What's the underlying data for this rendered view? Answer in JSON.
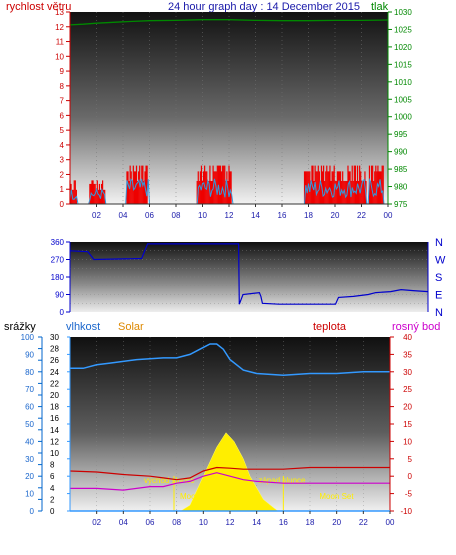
{
  "header": {
    "left_label": "rychlost větru",
    "title": "24 hour graph day : 14 December 2015",
    "right_label": "tlak"
  },
  "lower_header": {
    "label_srazky": "srážky",
    "label_vlhkost": "vlhkost",
    "label_solar": "Solar",
    "label_teplota": "teplota",
    "label_rosny": "rosný bod"
  },
  "colors": {
    "wind": "#dd0000",
    "wind_gust": "#3399dd",
    "pressure": "#008800",
    "direction": "#0000cc",
    "humidity": "#3399ff",
    "temperature": "#cc0000",
    "dewpoint": "#cc00cc",
    "solar": "#ffee00",
    "axis_red": "#cc0000",
    "axis_blue": "#0000cc",
    "axis_green": "#008800"
  },
  "chart_data": [
    {
      "type": "bar",
      "x_ticks": [
        "02",
        "04",
        "06",
        "08",
        "10",
        "12",
        "14",
        "16",
        "18",
        "20",
        "22",
        "00"
      ],
      "y_left_ticks": [
        "0",
        "1",
        "2",
        "3",
        "4",
        "5",
        "6",
        "7",
        "8",
        "9",
        "10",
        "11",
        "12",
        "13"
      ],
      "y_right_ticks": [
        "975",
        "980",
        "985",
        "990",
        "995",
        "1000",
        "1005",
        "1010",
        "1015",
        "1020",
        "1025",
        "1030"
      ],
      "ylim_left": [
        0,
        13
      ],
      "ylim_right": [
        975,
        1030
      ],
      "wind_segments": [
        {
          "from": 0.0,
          "to": 0.5,
          "max": 1.6
        },
        {
          "from": 1.5,
          "to": 2.7,
          "max": 1.6
        },
        {
          "from": 4.3,
          "to": 5.9,
          "max": 2.6
        },
        {
          "from": 9.6,
          "to": 12.2,
          "max": 2.6
        },
        {
          "from": 17.7,
          "to": 22.4,
          "max": 2.6
        },
        {
          "from": 22.6,
          "to": 23.7,
          "max": 2.6
        }
      ],
      "pressure": [
        [
          0,
          1026.3
        ],
        [
          1,
          1026.5
        ],
        [
          2,
          1026.8
        ],
        [
          4,
          1027.2
        ],
        [
          6,
          1027.5
        ],
        [
          8,
          1027.6
        ],
        [
          10,
          1027.8
        ],
        [
          12,
          1027.8
        ],
        [
          14,
          1027.6
        ],
        [
          16,
          1027.5
        ],
        [
          18,
          1027.5
        ],
        [
          20,
          1027.6
        ],
        [
          22,
          1027.6
        ],
        [
          24,
          1027.7
        ]
      ]
    },
    {
      "type": "line",
      "y_left_ticks": [
        "0",
        "90",
        "180",
        "270",
        "360"
      ],
      "y_right_ticks": [
        "N",
        "W",
        "S",
        "E",
        "N"
      ],
      "ylim": [
        0,
        360
      ],
      "direction": [
        [
          0,
          315
        ],
        [
          1.2,
          310
        ],
        [
          1.6,
          270
        ],
        [
          4.8,
          275
        ],
        [
          5.2,
          350
        ],
        [
          11.3,
          350
        ],
        [
          11.35,
          40
        ],
        [
          11.6,
          90
        ],
        [
          12.7,
          100
        ],
        [
          12.8,
          80
        ],
        [
          12.9,
          45
        ],
        [
          14,
          40
        ],
        [
          16,
          40
        ],
        [
          17.8,
          40
        ],
        [
          18.0,
          75
        ],
        [
          19,
          80
        ],
        [
          20,
          90
        ],
        [
          20.5,
          100
        ],
        [
          21.5,
          105
        ],
        [
          22.2,
          115
        ],
        [
          23,
          110
        ],
        [
          24,
          105
        ]
      ]
    },
    {
      "type": "line",
      "x_ticks": [
        "02",
        "04",
        "06",
        "08",
        "10",
        "12",
        "14",
        "16",
        "18",
        "20",
        "22",
        "00"
      ],
      "y_rain_ticks": [
        "0",
        "2",
        "4",
        "6",
        "8",
        "10",
        "12",
        "14",
        "16",
        "18",
        "20",
        "22",
        "24",
        "26",
        "28",
        "30"
      ],
      "y_hum_ticks": [
        "0",
        "10",
        "20",
        "30",
        "40",
        "50",
        "60",
        "70",
        "80",
        "90",
        "100"
      ],
      "y_temp_ticks": [
        "-10",
        "-5",
        "0",
        "5",
        "10",
        "15",
        "20",
        "25",
        "30",
        "35",
        "40"
      ],
      "ylim_humidity": [
        0,
        100
      ],
      "ylim_temperature": [
        -10,
        40
      ],
      "humidity": [
        [
          0,
          82
        ],
        [
          1,
          82
        ],
        [
          2,
          84
        ],
        [
          3,
          85
        ],
        [
          5,
          87
        ],
        [
          7,
          88
        ],
        [
          8,
          88
        ],
        [
          9,
          90
        ],
        [
          10,
          94
        ],
        [
          10.5,
          96
        ],
        [
          11,
          96
        ],
        [
          11.5,
          93
        ],
        [
          12,
          87
        ],
        [
          13,
          81
        ],
        [
          14,
          79
        ],
        [
          16,
          78
        ],
        [
          18,
          79
        ],
        [
          20,
          79
        ],
        [
          22,
          80
        ],
        [
          24,
          80
        ]
      ],
      "temperature": [
        [
          0,
          1.5
        ],
        [
          2,
          1.2
        ],
        [
          4,
          0.5
        ],
        [
          6,
          0
        ],
        [
          7,
          -0.5
        ],
        [
          8,
          -1
        ],
        [
          9,
          -0.5
        ],
        [
          10,
          1.5
        ],
        [
          11,
          2.5
        ],
        [
          12,
          2.3
        ],
        [
          13,
          2.0
        ],
        [
          14,
          2.0
        ],
        [
          16,
          2.0
        ],
        [
          18,
          2.5
        ],
        [
          20,
          2.5
        ],
        [
          22,
          2.5
        ],
        [
          24,
          2.5
        ]
      ],
      "dewpoint": [
        [
          0,
          -3.5
        ],
        [
          2,
          -3.5
        ],
        [
          4,
          -4
        ],
        [
          6,
          -3
        ],
        [
          7,
          -3
        ],
        [
          8,
          -2
        ],
        [
          9,
          -1.5
        ],
        [
          10,
          0
        ],
        [
          11,
          1
        ],
        [
          12,
          0
        ],
        [
          13,
          -1
        ],
        [
          14,
          -1.5
        ],
        [
          16,
          -2
        ],
        [
          18,
          -2
        ],
        [
          20,
          -2
        ],
        [
          22,
          -2
        ],
        [
          24,
          -2
        ]
      ],
      "solar": [
        [
          8.3,
          0
        ],
        [
          9,
          1
        ],
        [
          10,
          6
        ],
        [
          11,
          11
        ],
        [
          11.7,
          13.5
        ],
        [
          12.3,
          12
        ],
        [
          13,
          9
        ],
        [
          13.5,
          6
        ],
        [
          14.5,
          2
        ],
        [
          15.3,
          0.5
        ],
        [
          15.6,
          0
        ]
      ],
      "sunrise_hour": 7.8,
      "sunset_hour": 16.0,
      "sunrise_label": "východ slunce",
      "sunset_label": "západ slunce",
      "moon_label": "Moon",
      "moon_set_label": "Moon Set",
      "moon_set_hour": 19.9
    }
  ]
}
